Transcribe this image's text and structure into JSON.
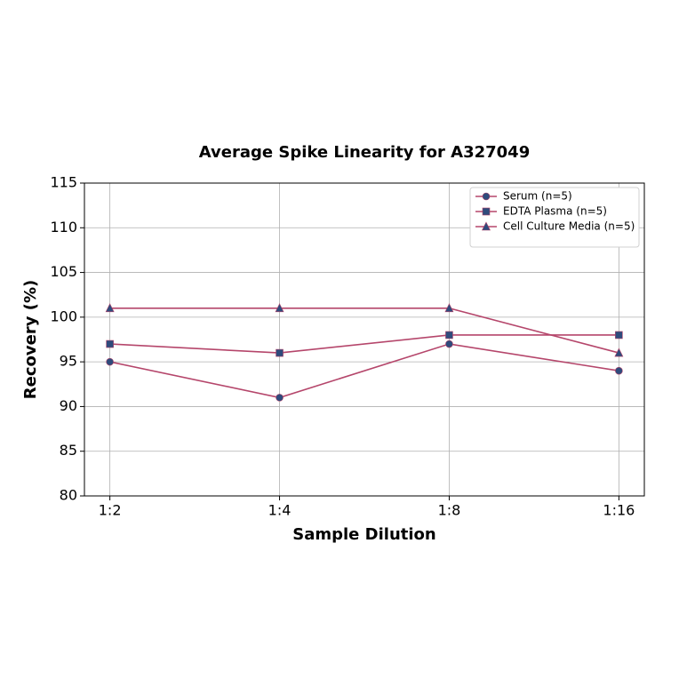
{
  "chart_data": {
    "type": "line",
    "title": "Average Spike Linearity for A327049",
    "x_label": "Sample Dilution",
    "y_label": "Recovery (%)",
    "categories": [
      "1:2",
      "1:4",
      "1:8",
      "1:16"
    ],
    "series": [
      {
        "name": "Serum (n=5)",
        "color": "#b5466b",
        "marker_color": "#2f4b7c",
        "marker": "circle",
        "values": [
          95,
          91,
          97,
          94
        ]
      },
      {
        "name": "EDTA Plasma (n=5)",
        "color": "#b5466b",
        "marker_color": "#2f4b7c",
        "marker": "square",
        "values": [
          97,
          96,
          98,
          98
        ]
      },
      {
        "name": "Cell Culture Media (n=5)",
        "color": "#b5466b",
        "marker_color": "#2f4b7c",
        "marker": "triangle",
        "values": [
          101,
          101,
          101,
          96
        ]
      }
    ],
    "ylim": [
      80,
      115
    ],
    "yticks": [
      80,
      85,
      90,
      95,
      100,
      105,
      110,
      115
    ],
    "grid": true,
    "legend": "upper right"
  }
}
